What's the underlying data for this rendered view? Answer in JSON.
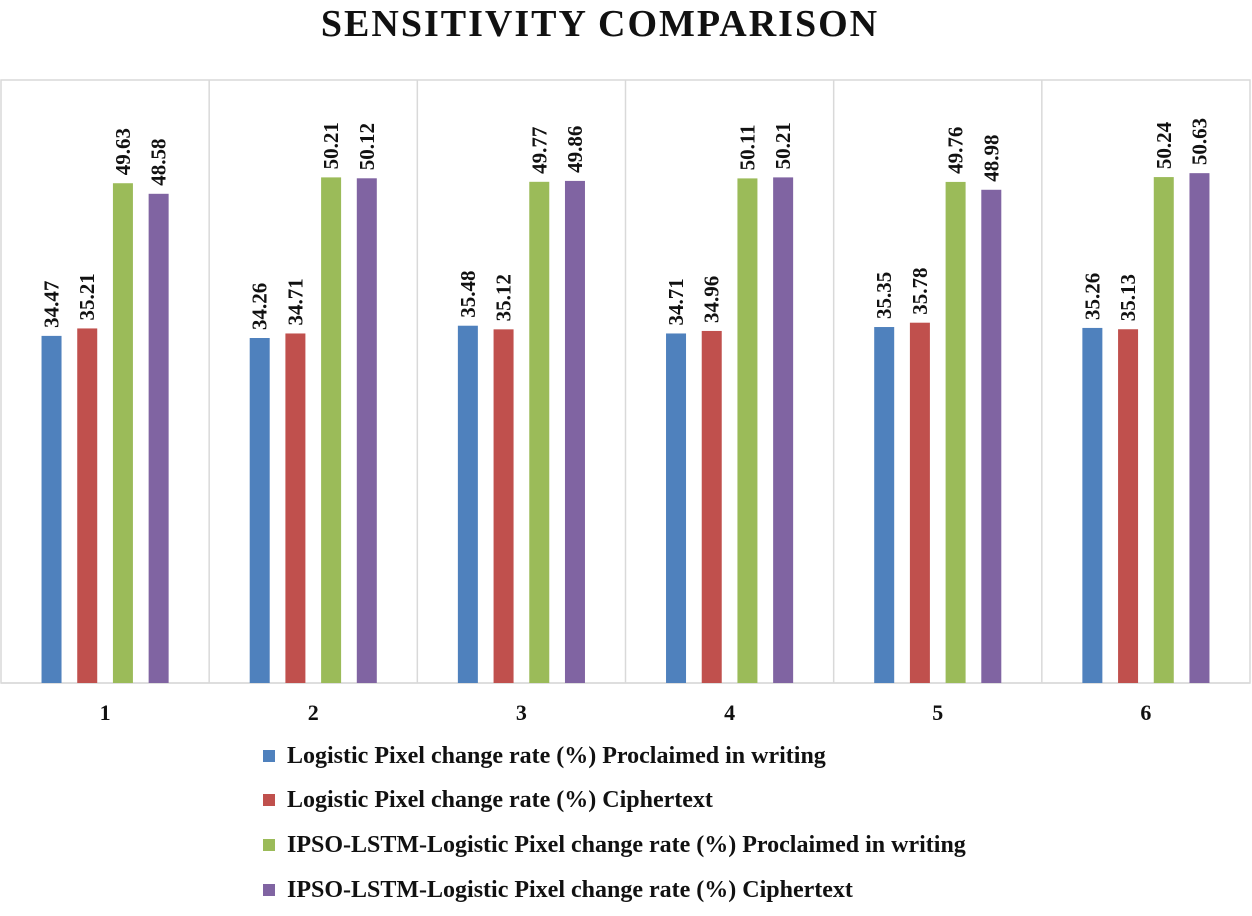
{
  "chart_data": {
    "type": "bar",
    "title": "SENSITIVITY COMPARISON",
    "xlabel": "",
    "ylabel": "",
    "categories": [
      "1",
      "2",
      "3",
      "4",
      "5",
      "6"
    ],
    "ylim": [
      0,
      60
    ],
    "grid": "vertical category separators",
    "legend_position": "bottom",
    "data_labels": true,
    "series": [
      {
        "name": "Logistic Pixel change rate (%) Proclaimed in writing",
        "color": "#4F81BD",
        "values": [
          34.47,
          34.26,
          35.48,
          34.71,
          35.35,
          35.26
        ]
      },
      {
        "name": "Logistic Pixel change rate (%) Ciphertext",
        "color": "#C0504D",
        "values": [
          35.21,
          34.71,
          35.12,
          34.96,
          35.78,
          35.13
        ]
      },
      {
        "name": "IPSO-LSTM-Logistic Pixel change rate (%) Proclaimed in writing",
        "color": "#9BBB59",
        "values": [
          49.63,
          50.21,
          49.77,
          50.11,
          49.76,
          50.24
        ]
      },
      {
        "name": "IPSO-LSTM-Logistic Pixel change rate (%) Ciphertext",
        "color": "#8064A2",
        "values": [
          48.58,
          50.12,
          49.86,
          50.21,
          48.98,
          50.63
        ]
      }
    ]
  }
}
